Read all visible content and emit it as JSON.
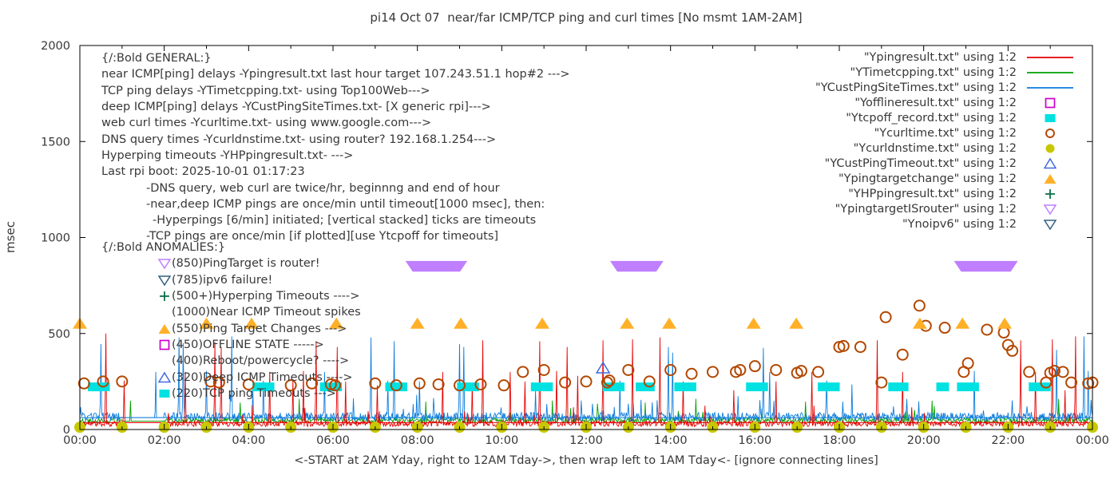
{
  "title": "pi14 Oct 07  near/far ICMP/TCP ping and curl times [No msmt 1AM-2AM]",
  "plot": {
    "xlabel": "<-START at 2AM Yday, right to 12AM Tday->, then wrap left to 1AM Tday<- [ignore connecting lines]",
    "ylabel": "msec",
    "x_tick_labels": [
      "00:00",
      "02:00",
      "04:00",
      "06:00",
      "08:00",
      "10:00",
      "12:00",
      "14:00",
      "16:00",
      "18:00",
      "20:00",
      "22:00",
      "00:00"
    ],
    "y_tick_labels": [
      "0",
      "500",
      "1000",
      "1500",
      "2000"
    ]
  },
  "annotations": {
    "general": [
      {
        "text": "{/:Bold GENERAL:}",
        "indent": 0
      },
      {
        "text": "near ICMP[ping] delays -Ypingresult.txt last hour target 107.243.51.1 hop#2 --->",
        "indent": 0
      },
      {
        "text": "TCP ping delays -YTimetcpping.txt- using Top100Web--->",
        "indent": 0
      },
      {
        "text": "deep ICMP[ping] delays -YCustPingSiteTimes.txt- [X generic rpi]--->",
        "indent": 0
      },
      {
        "text": "web curl times -Ycurltime.txt- using www.google.com--->",
        "indent": 0
      },
      {
        "text": "DNS query times -Ycurldnstime.txt- using router? 192.168.1.254--->",
        "indent": 0
      },
      {
        "text": "Hyperping timeouts -YHPpingresult.txt- --->",
        "indent": 0
      },
      {
        "text": "Last rpi boot: 2025-10-01 01:17:23",
        "indent": 0
      },
      {
        "text": "-DNS query, web curl are twice/hr, beginnng and end of hour",
        "indent": 1
      },
      {
        "text": "-near,deep ICMP pings are once/min until timeout[1000 msec], then:",
        "indent": 1
      },
      {
        "text": "-Hyperpings [6/min] initiated; [vertical stacked] ticks are timeouts",
        "indent": 2
      },
      {
        "text": "-TCP pings are once/min [if plotted][use Ytcpoff for timeouts]",
        "indent": 1
      }
    ],
    "anomalies": [
      {
        "text": "{/:Bold ANOMALIES:}",
        "indent": 0,
        "marker": null,
        "color": null
      },
      {
        "text": "(850)PingTarget is router!",
        "indent": 1,
        "marker": "tri-down-open",
        "color": "#bf7fff"
      },
      {
        "text": "(785)ipv6 failure!",
        "indent": 1,
        "marker": "tri-down-open",
        "color": "#336080"
      },
      {
        "text": "(500+)Hyperping Timeouts ---->",
        "indent": 1,
        "marker": "plus",
        "color": "#006b40"
      },
      {
        "text": "(1000)Near ICMP Timeout spikes",
        "indent": 1,
        "marker": null,
        "color": null
      },
      {
        "text": "(550)Ping Target Changes --->",
        "indent": 1,
        "marker": "tri-up-fill",
        "color": "#ffb028"
      },
      {
        "text": "(450)OFFLINE STATE ----->",
        "indent": 1,
        "marker": "square-open",
        "color": "#cc00cc"
      },
      {
        "text": "(400)Reboot/powercycle? ---->",
        "indent": 1,
        "marker": null,
        "color": null
      },
      {
        "text": "(320)Deep ICMP Timeouts ---->",
        "indent": 1,
        "marker": "tri-up-open",
        "color": "#4169e1"
      },
      {
        "text": "(220)TCP ping Timeouts --->",
        "indent": 1,
        "marker": "square-fill",
        "color": "#00e1e1"
      }
    ]
  },
  "legend": [
    {
      "label": "\"Ypingresult.txt\" using 1:2",
      "sample": "line",
      "color": "#e60000"
    },
    {
      "label": "\"YTimetcpping.txt\" using 1:2",
      "sample": "line",
      "color": "#00a000"
    },
    {
      "label": "\"YCustPingSiteTimes.txt\" using 1:2",
      "sample": "line",
      "color": "#0c7bdc"
    },
    {
      "label": "\"Yofflineresult.txt\" using 1:2",
      "sample": "square-open",
      "color": "#cc00cc"
    },
    {
      "label": "\"Ytcpoff_record.txt\" using 1:2",
      "sample": "square-fill",
      "color": "#00e1e1"
    },
    {
      "label": "\"Ycurltime.txt\" using 1:2",
      "sample": "circle-open",
      "color": "#b34700"
    },
    {
      "label": "\"Ycurldnstime.txt\" using 1:2",
      "sample": "circle-fill",
      "color": "#c8c800"
    },
    {
      "label": "\"YCustPingTimeout.txt\" using 1:2",
      "sample": "tri-up-open",
      "color": "#4169e1"
    },
    {
      "label": "\"Ypingtargetchange\" using 1:2",
      "sample": "tri-up-fill",
      "color": "#ffb028"
    },
    {
      "label": "\"YHPpingresult.txt\" using 1:2",
      "sample": "plus",
      "color": "#006b40"
    },
    {
      "label": "\"YpingtargetISrouter\" using 1:2",
      "sample": "tri-down-open",
      "color": "#bf7fff"
    },
    {
      "label": "\"Ynoipv6\" using 1:2",
      "sample": "tri-down-open",
      "color": "#336080"
    }
  ],
  "chart_data": {
    "type": "line",
    "title": "pi14 Oct 07  near/far ICMP/TCP ping and curl times [No msmt 1AM-2AM]",
    "xlabel": "<-START at 2AM Yday, right to 12AM Tday->, then wrap left to 1AM Tday<- [ignore connecting lines]",
    "ylabel": "msec",
    "x_range_hours": [
      0,
      24
    ],
    "ylim": [
      0,
      2000
    ],
    "y_ticks": [
      0,
      500,
      1000,
      1500,
      2000
    ],
    "x_major_tick_every_hours": 2,
    "x_minor_tick_every_hours": 1,
    "no_msmt_gap_hours": [
      1,
      2
    ],
    "series": {
      "near_icmp_ping": {
        "file": "Ypingresult.txt",
        "color": "#e60000",
        "seed": 11,
        "baseline_msec": 26,
        "noise_msec": 30,
        "burst_prob": 0.02,
        "burst_msec": 110,
        "gap_msec": 36,
        "wrap_line_msec": 36,
        "spikes": [
          [
            0.62,
            500
          ],
          [
            1.05,
            255
          ],
          [
            2.5,
            300
          ],
          [
            3.2,
            455
          ],
          [
            3.35,
            430
          ],
          [
            4.5,
            300
          ],
          [
            5.05,
            255
          ],
          [
            5.3,
            305
          ],
          [
            5.6,
            460
          ],
          [
            6.1,
            430
          ],
          [
            6.3,
            250
          ],
          [
            7.05,
            230
          ],
          [
            8.6,
            300
          ],
          [
            9.3,
            235
          ],
          [
            9.55,
            465
          ],
          [
            10.2,
            300
          ],
          [
            10.55,
            250
          ],
          [
            10.9,
            460
          ],
          [
            11.3,
            305
          ],
          [
            11.55,
            430
          ],
          [
            11.8,
            280
          ],
          [
            12.4,
            465
          ],
          [
            13.1,
            470
          ],
          [
            13.75,
            480
          ],
          [
            14.3,
            250
          ],
          [
            15.5,
            205
          ],
          [
            16.5,
            250
          ],
          [
            17.35,
            300
          ],
          [
            18.9,
            465
          ],
          [
            19.5,
            300
          ],
          [
            22.3,
            465
          ],
          [
            22.65,
            300
          ],
          [
            23.05,
            470
          ],
          [
            23.35,
            205
          ],
          [
            23.6,
            485
          ]
        ]
      },
      "tcp_ping": {
        "file": "YTimetcpping.txt",
        "color": "#00a000",
        "seed": 22,
        "baseline_msec": 44,
        "noise_msec": 26,
        "burst_prob": 0.012,
        "burst_msec": 80,
        "gap_msec": 44,
        "wrap_line_msec": null,
        "spikes": [
          [
            1.2,
            150
          ],
          [
            3.8,
            140
          ],
          [
            5.2,
            160
          ],
          [
            8.2,
            145
          ],
          [
            11.2,
            150
          ],
          [
            13.4,
            140
          ],
          [
            14.6,
            160
          ],
          [
            17.2,
            145
          ],
          [
            20.2,
            150
          ],
          [
            23.2,
            160
          ]
        ]
      },
      "deep_icmp_ping": {
        "file": "YCustPingSiteTimes.txt",
        "color": "#0c7bdc",
        "seed": 33,
        "baseline_msec": 60,
        "noise_msec": 44,
        "burst_prob": 0.03,
        "burst_msec": 100,
        "gap_msec": 62,
        "wrap_line_msec": 62,
        "spikes": [
          [
            0.5,
            445
          ],
          [
            1.8,
            300
          ],
          [
            2.35,
            480
          ],
          [
            2.45,
            450
          ],
          [
            3.0,
            305
          ],
          [
            3.6,
            485
          ],
          [
            4.1,
            205
          ],
          [
            4.35,
            255
          ],
          [
            5.8,
            300
          ],
          [
            6.9,
            480
          ],
          [
            7.3,
            255
          ],
          [
            7.45,
            460
          ],
          [
            8.05,
            250
          ],
          [
            9.0,
            445
          ],
          [
            9.1,
            430
          ],
          [
            10.8,
            205
          ],
          [
            12.8,
            255
          ],
          [
            13.95,
            430
          ],
          [
            14.05,
            400
          ],
          [
            16.2,
            425
          ],
          [
            16.35,
            300
          ],
          [
            17.7,
            255
          ],
          [
            18.3,
            235
          ],
          [
            21.2,
            305
          ],
          [
            23.15,
            415
          ],
          [
            23.8,
            485
          ],
          [
            23.9,
            305
          ]
        ]
      }
    },
    "markers": {
      "ping_target_change_triangles": {
        "file": "Ypingtargetchange",
        "color": "#ffb028",
        "value_msec": 550,
        "times_hours": [
          0,
          3,
          4.07,
          6.08,
          8,
          9.03,
          10.96,
          12.97,
          13.97,
          15.97,
          16.98,
          19.91,
          20.92,
          21.92
        ]
      },
      "tcp_ping_timeout_boxes": {
        "file": "Ytcpoff_record.txt",
        "color": "#00e1e1",
        "value_msec": 222,
        "boxes_hours_center_width": [
          [
            0.45,
            0.52
          ],
          [
            4.35,
            0.52
          ],
          [
            5.95,
            0.52
          ],
          [
            7.5,
            0.52
          ],
          [
            9.2,
            0.52
          ],
          [
            10.95,
            0.52
          ],
          [
            12.65,
            0.52
          ],
          [
            13.4,
            0.45
          ],
          [
            14.35,
            0.52
          ],
          [
            16.05,
            0.52
          ],
          [
            17.75,
            0.52
          ],
          [
            19.4,
            0.48
          ],
          [
            20.45,
            0.3
          ],
          [
            21.05,
            0.52
          ],
          [
            22.75,
            0.52
          ]
        ]
      },
      "pingtarget_is_router_bars": {
        "file": "YpingtargetISrouter",
        "color": "#bf7fff",
        "value_msec": 850,
        "ranges_hours": [
          [
            7.85,
            9.05
          ],
          [
            12.7,
            13.7
          ],
          [
            20.85,
            22.1
          ]
        ]
      },
      "web_curl_circles": {
        "file": "Ycurltime.txt",
        "color": "#b34700",
        "points_hour_msec": [
          [
            0.1,
            240
          ],
          [
            0.55,
            250
          ],
          [
            1.0,
            250
          ],
          [
            3.1,
            250
          ],
          [
            3.3,
            245
          ],
          [
            4.0,
            235
          ],
          [
            5.0,
            230
          ],
          [
            5.5,
            240
          ],
          [
            5.95,
            235
          ],
          [
            6.05,
            230
          ],
          [
            7.0,
            240
          ],
          [
            7.5,
            230
          ],
          [
            8.05,
            240
          ],
          [
            8.5,
            235
          ],
          [
            9.0,
            230
          ],
          [
            9.5,
            235
          ],
          [
            10.05,
            230
          ],
          [
            10.5,
            300
          ],
          [
            11.0,
            310
          ],
          [
            11.5,
            245
          ],
          [
            12.0,
            250
          ],
          [
            12.5,
            245
          ],
          [
            12.55,
            255
          ],
          [
            13.0,
            310
          ],
          [
            13.5,
            250
          ],
          [
            14.0,
            310
          ],
          [
            14.5,
            290
          ],
          [
            15.0,
            300
          ],
          [
            15.55,
            300
          ],
          [
            15.65,
            310
          ],
          [
            16.0,
            330
          ],
          [
            16.5,
            310
          ],
          [
            17.0,
            295
          ],
          [
            17.1,
            305
          ],
          [
            17.5,
            300
          ],
          [
            18.0,
            430
          ],
          [
            18.1,
            435
          ],
          [
            18.5,
            430
          ],
          [
            19.0,
            245
          ],
          [
            19.1,
            585
          ],
          [
            19.5,
            390
          ],
          [
            19.9,
            645
          ],
          [
            20.05,
            540
          ],
          [
            20.5,
            530
          ],
          [
            20.95,
            300
          ],
          [
            21.05,
            345
          ],
          [
            21.5,
            520
          ],
          [
            21.9,
            505
          ],
          [
            22.0,
            440
          ],
          [
            22.1,
            410
          ],
          [
            22.5,
            300
          ],
          [
            22.9,
            245
          ],
          [
            23.0,
            295
          ],
          [
            23.1,
            305
          ],
          [
            23.3,
            300
          ],
          [
            23.5,
            245
          ],
          [
            23.9,
            240
          ],
          [
            24.0,
            245
          ]
        ]
      },
      "dns_query_dots": {
        "file": "Ycurldnstime.txt",
        "color": "#c8c800",
        "value_msec": 12,
        "times_hours": [
          0,
          1,
          2,
          3,
          4,
          5,
          6,
          7,
          8,
          9,
          10,
          11,
          12,
          13,
          14,
          15,
          16,
          17,
          18,
          19,
          20,
          21,
          22,
          23,
          24
        ]
      },
      "deep_icmp_timeout_triangles": {
        "file": "YCustPingTimeout.txt",
        "color": "#4169e1",
        "points_hour_msec": [
          [
            12.4,
            320
          ]
        ]
      }
    }
  }
}
